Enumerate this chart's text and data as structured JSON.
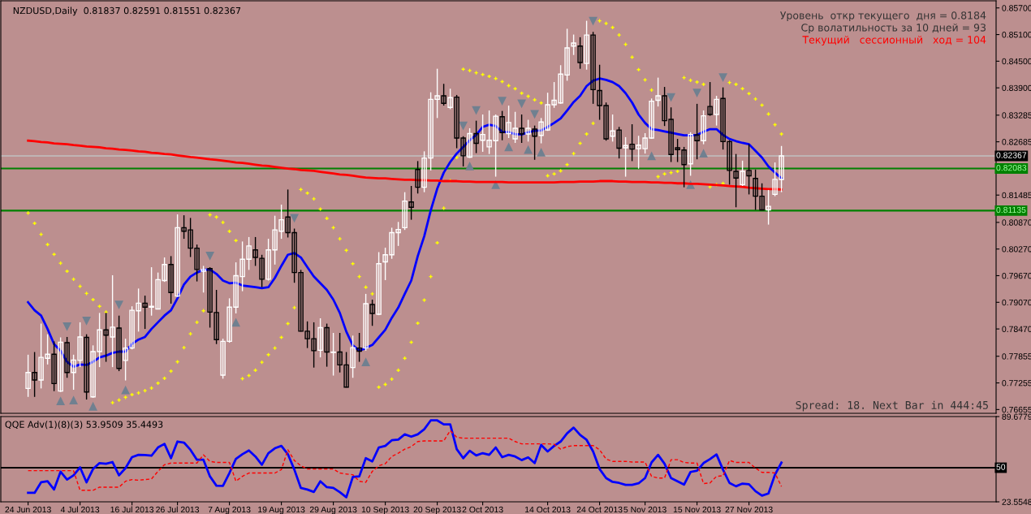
{
  "chart_data": [
    {
      "type": "candlestick",
      "title": "NZDUSD,Daily  0.81837 0.82591 0.81551 0.82367",
      "annotations": [
        "Уровень  откр текущего  дня = 0.8184",
        "Ср волатильность за 10 дней = 93",
        "Текущий   сессионный   ход = 104",
        "Spread: 18. Next Bar in 444:45"
      ],
      "categories": [
        null,
        null,
        null,
        null,
        null,
        null,
        null,
        null,
        null,
        null,
        null,
        null,
        null,
        null,
        null,
        null,
        null,
        null,
        null,
        null,
        null,
        null,
        null,
        null,
        null,
        null,
        null,
        null,
        null,
        null,
        null,
        null,
        null,
        null,
        null,
        null,
        null,
        null,
        null,
        null,
        null,
        null,
        null,
        null,
        null,
        null,
        null,
        null,
        null,
        null,
        null,
        null,
        null,
        null,
        null,
        null,
        null,
        null,
        null,
        null,
        null,
        null,
        null,
        null,
        null,
        null,
        null,
        null,
        null,
        null,
        null,
        null,
        null,
        null,
        null,
        null,
        null,
        null,
        null,
        null,
        null,
        null,
        null,
        null,
        null,
        null,
        null,
        null,
        null,
        null,
        null,
        null,
        null,
        null,
        null,
        null,
        null,
        null,
        null,
        null,
        null,
        null,
        null,
        null,
        null,
        null,
        null,
        null,
        null,
        null,
        null,
        null,
        null,
        null,
        null,
        null,
        null
      ],
      "ohlc": [
        [
          0.7713,
          0.7789,
          0.7694,
          0.7749
        ],
        [
          0.7749,
          0.7795,
          0.7694,
          0.7732
        ],
        [
          0.7732,
          0.7859,
          0.7713,
          0.7783
        ],
        [
          0.7781,
          0.7835,
          0.7767,
          0.779
        ],
        [
          0.779,
          0.7819,
          0.7707,
          0.7724
        ],
        [
          0.7707,
          0.7828,
          0.7705,
          0.7817
        ],
        [
          0.7816,
          0.7829,
          0.7737,
          0.7749
        ],
        [
          0.7749,
          0.7789,
          0.771,
          0.7777
        ],
        [
          0.7776,
          0.7862,
          0.7761,
          0.7829
        ],
        [
          0.7828,
          0.7835,
          0.7688,
          0.7705
        ],
        [
          0.7694,
          0.781,
          0.7692,
          0.7796
        ],
        [
          0.7796,
          0.7883,
          0.7761,
          0.7845
        ],
        [
          0.7845,
          0.7883,
          0.7773,
          0.7833
        ],
        [
          0.7829,
          0.7968,
          0.7761,
          0.7851
        ],
        [
          0.7849,
          0.7877,
          0.7752,
          0.7758
        ],
        [
          0.7776,
          0.7825,
          0.7731,
          0.7804
        ],
        [
          0.7804,
          0.7898,
          0.7801,
          0.7889
        ],
        [
          0.7888,
          0.7938,
          0.7841,
          0.7905
        ],
        [
          0.7905,
          0.7922,
          0.7847,
          0.7896
        ],
        [
          0.7896,
          0.7986,
          0.7877,
          0.7898
        ],
        [
          0.7892,
          0.7974,
          0.7891,
          0.7958
        ],
        [
          0.7956,
          0.8008,
          0.7953,
          0.7992
        ],
        [
          0.7992,
          0.8011,
          0.7904,
          0.7929
        ],
        [
          0.7921,
          0.8105,
          0.7919,
          0.8075
        ],
        [
          0.8075,
          0.8103,
          0.805,
          0.8067
        ],
        [
          0.807,
          0.8097,
          0.8009,
          0.8029
        ],
        [
          0.8029,
          0.8037,
          0.7954,
          0.7981
        ],
        [
          0.7977,
          0.7989,
          0.7929,
          0.7981
        ],
        [
          0.7983,
          0.7986,
          0.785,
          0.7885
        ],
        [
          0.7884,
          0.7935,
          0.7813,
          0.7823
        ],
        [
          0.7743,
          0.7825,
          0.7735,
          0.7819
        ],
        [
          0.7819,
          0.7916,
          0.7816,
          0.7896
        ],
        [
          0.7896,
          0.7997,
          0.7882,
          0.7967
        ],
        [
          0.7965,
          0.8044,
          0.7932,
          0.8004
        ],
        [
          0.8004,
          0.8054,
          0.798,
          0.8034
        ],
        [
          0.8025,
          0.8054,
          0.7989,
          0.8008
        ],
        [
          0.8006,
          0.8014,
          0.7941,
          0.7959
        ],
        [
          0.7959,
          0.805,
          0.7956,
          0.8025
        ],
        [
          0.8025,
          0.8102,
          0.7992,
          0.807
        ],
        [
          0.8067,
          0.8127,
          0.805,
          0.8093
        ],
        [
          0.8099,
          0.8161,
          0.8053,
          0.8064
        ],
        [
          0.8064,
          0.8073,
          0.7951,
          0.7974
        ],
        [
          0.7974,
          0.798,
          0.7841,
          0.7842
        ],
        [
          0.7842,
          0.7864,
          0.7804,
          0.7825
        ],
        [
          0.7825,
          0.7862,
          0.776,
          0.7798
        ],
        [
          0.7799,
          0.7871,
          0.7783,
          0.785
        ],
        [
          0.785,
          0.7859,
          0.7762,
          0.7795
        ],
        [
          0.7794,
          0.7838,
          0.7742,
          0.7795
        ],
        [
          0.7795,
          0.7838,
          0.7749,
          0.7766
        ],
        [
          0.7766,
          0.7795,
          0.7715,
          0.7716
        ],
        [
          0.776,
          0.7832,
          0.7737,
          0.7805
        ],
        [
          0.7804,
          0.7838,
          0.7773,
          0.7797
        ],
        [
          0.7804,
          0.7926,
          0.7798,
          0.7904
        ],
        [
          0.7902,
          0.7913,
          0.7854,
          0.7882
        ],
        [
          0.788,
          0.802,
          0.7878,
          0.7994
        ],
        [
          0.7998,
          0.803,
          0.7957,
          0.8014
        ],
        [
          0.8014,
          0.8075,
          0.8005,
          0.8064
        ],
        [
          0.8064,
          0.8088,
          0.8034,
          0.8071
        ],
        [
          0.8075,
          0.8155,
          0.807,
          0.8135
        ],
        [
          0.8133,
          0.8169,
          0.8093,
          0.8121
        ],
        [
          0.8206,
          0.8225,
          0.8152,
          0.8166
        ],
        [
          0.8166,
          0.8247,
          0.8155,
          0.8232
        ],
        [
          0.8232,
          0.838,
          0.8204,
          0.8364
        ],
        [
          0.8364,
          0.8433,
          0.8322,
          0.8372
        ],
        [
          0.8372,
          0.8399,
          0.835,
          0.8355
        ],
        [
          0.8346,
          0.8388,
          0.8342,
          0.8368
        ],
        [
          0.8369,
          0.8374,
          0.8254,
          0.8277
        ],
        [
          0.8277,
          0.8281,
          0.8213,
          0.8237
        ],
        [
          0.8234,
          0.8299,
          0.8232,
          0.8287
        ],
        [
          0.8287,
          0.8316,
          0.8243,
          0.8265
        ],
        [
          0.8272,
          0.833,
          0.8246,
          0.8285
        ],
        [
          0.8257,
          0.8339,
          0.8241,
          0.8272
        ],
        [
          0.8271,
          0.833,
          0.819,
          0.8326
        ],
        [
          0.8325,
          0.8338,
          0.8272,
          0.8289
        ],
        [
          0.8287,
          0.835,
          0.8277,
          0.8312
        ],
        [
          0.8275,
          0.8336,
          0.8266,
          0.8299
        ],
        [
          0.8299,
          0.833,
          0.8266,
          0.8286
        ],
        [
          0.8286,
          0.8318,
          0.8269,
          0.8299
        ],
        [
          0.8297,
          0.8305,
          0.8228,
          0.8281
        ],
        [
          0.8283,
          0.8322,
          0.8265,
          0.8313
        ],
        [
          0.8295,
          0.8379,
          0.8293,
          0.8352
        ],
        [
          0.8352,
          0.8403,
          0.8345,
          0.8362
        ],
        [
          0.8356,
          0.8441,
          0.8354,
          0.8421
        ],
        [
          0.8419,
          0.8523,
          0.8406,
          0.848
        ],
        [
          0.8484,
          0.851,
          0.8464,
          0.8491
        ],
        [
          0.8484,
          0.8504,
          0.8433,
          0.8447
        ],
        [
          0.8445,
          0.8541,
          0.8431,
          0.8509
        ],
        [
          0.8509,
          0.8516,
          0.8354,
          0.8386
        ],
        [
          0.8384,
          0.8442,
          0.8318,
          0.835
        ],
        [
          0.835,
          0.8357,
          0.8271,
          0.8275
        ],
        [
          0.8281,
          0.833,
          0.8269,
          0.8293
        ],
        [
          0.8295,
          0.8302,
          0.8231,
          0.8254
        ],
        [
          0.8255,
          0.8279,
          0.819,
          0.826
        ],
        [
          0.8263,
          0.8308,
          0.8225,
          0.8252
        ],
        [
          0.8253,
          0.8282,
          0.8208,
          0.8261
        ],
        [
          0.8253,
          0.8288,
          0.8242,
          0.8277
        ],
        [
          0.8277,
          0.8366,
          0.8275,
          0.836
        ],
        [
          0.8362,
          0.8413,
          0.8348,
          0.8372
        ],
        [
          0.8372,
          0.8392,
          0.8304,
          0.8316
        ],
        [
          0.8319,
          0.8346,
          0.8223,
          0.824
        ],
        [
          0.8255,
          0.8275,
          0.8223,
          0.8251
        ],
        [
          0.825,
          0.8257,
          0.8166,
          0.8217
        ],
        [
          0.8219,
          0.829,
          0.8192,
          0.8285
        ],
        [
          0.8284,
          0.8354,
          0.8229,
          0.8271
        ],
        [
          0.8271,
          0.8339,
          0.8263,
          0.8327
        ],
        [
          0.8348,
          0.8403,
          0.8327,
          0.833
        ],
        [
          0.833,
          0.8372,
          0.8305,
          0.8364
        ],
        [
          0.8366,
          0.8391,
          0.8251,
          0.8269
        ],
        [
          0.8269,
          0.8272,
          0.8172,
          0.8204
        ],
        [
          0.8202,
          0.8241,
          0.8121,
          0.8187
        ],
        [
          0.8172,
          0.8226,
          0.8169,
          0.8202
        ],
        [
          0.8204,
          0.8263,
          0.815,
          0.8192
        ],
        [
          0.8186,
          0.8206,
          0.8115,
          0.8146
        ],
        [
          0.8146,
          0.8175,
          0.8114,
          0.8115
        ],
        [
          0.8115,
          0.816,
          0.8082,
          0.8123
        ],
        [
          0.815,
          0.8222,
          0.8146,
          0.8184
        ],
        [
          0.81837,
          0.82591,
          0.81551,
          0.82367
        ]
      ],
      "colors": [
        "#ffffff",
        "#000000",
        "#ffffff",
        "#ffffff",
        "#000000",
        "#ffffff",
        "#000000",
        "#ffffff",
        "#ffffff",
        "#000000",
        "#ffffff",
        "#ffffff",
        "#000000",
        "#ffffff",
        "#000000",
        "#ffffff",
        "#ffffff",
        "#ffffff",
        "#000000",
        "#ffffff",
        "#ffffff",
        "#ffffff",
        "#000000",
        "#ffffff",
        "#000000",
        "#000000",
        "#000000",
        "#ffffff",
        "#000000",
        "#000000",
        "#ffffff",
        "#ffffff",
        "#ffffff",
        "#ffffff",
        "#ffffff",
        "#000000",
        "#000000",
        "#ffffff",
        "#ffffff",
        "#ffffff",
        "#000000",
        "#000000",
        "#000000",
        "#000000",
        "#000000",
        "#ffffff",
        "#000000",
        "#ffffff",
        "#000000",
        "#000000",
        "#ffffff",
        "#000000",
        "#ffffff",
        "#000000",
        "#ffffff",
        "#ffffff",
        "#ffffff",
        "#ffffff",
        "#ffffff",
        "#000000",
        "#000000",
        "#ffffff",
        "#ffffff",
        "#ffffff",
        "#000000",
        "#ffffff",
        "#000000",
        "#000000",
        "#ffffff",
        "#000000",
        "#ffffff",
        "#ffffff",
        "#ffffff",
        "#000000",
        "#ffffff",
        "#ffffff",
        "#000000",
        "#ffffff",
        "#000000",
        "#ffffff",
        "#ffffff",
        "#ffffff",
        "#ffffff",
        "#ffffff",
        "#ffffff",
        "#000000",
        "#ffffff",
        "#000000",
        "#000000",
        "#000000",
        "#ffffff",
        "#000000",
        "#ffffff",
        "#000000",
        "#ffffff",
        "#ffffff",
        "#ffffff",
        "#ffffff",
        "#000000",
        "#000000",
        "#000000",
        "#000000",
        "#ffffff",
        "#000000",
        "#ffffff",
        "#000000",
        "#ffffff",
        "#000000",
        "#000000",
        "#000000",
        "#ffffff",
        "#000000",
        "#000000",
        "#000000",
        "#ffffff",
        "#ffffff",
        "#ffffff"
      ],
      "series": [
        {
          "type": "line",
          "color": "#0000ff",
          "values": [
            0.7907,
            0.7889,
            0.7877,
            0.7847,
            0.7813,
            0.7798,
            0.7773,
            0.7762,
            0.7767,
            0.7766,
            0.7773,
            0.7783,
            0.7787,
            0.7793,
            0.7796,
            0.7796,
            0.7813,
            0.7823,
            0.7829,
            0.7847,
            0.7862,
            0.7877,
            0.7889,
            0.7916,
            0.7947,
            0.7965,
            0.7974,
            0.798,
            0.7981,
            0.7971,
            0.7956,
            0.795,
            0.7951,
            0.7945,
            0.7943,
            0.7941,
            0.7939,
            0.7941,
            0.7962,
            0.7989,
            0.8014,
            0.8018,
            0.8008,
            0.7986,
            0.7965,
            0.795,
            0.7935,
            0.7913,
            0.7883,
            0.7841,
            0.781,
            0.7798,
            0.7804,
            0.7811,
            0.7828,
            0.7845,
            0.7872,
            0.7895,
            0.7926,
            0.7956,
            0.8011,
            0.8056,
            0.8114,
            0.8163,
            0.8199,
            0.8223,
            0.8242,
            0.8257,
            0.8272,
            0.8284,
            0.8302,
            0.8307,
            0.8304,
            0.8291,
            0.829,
            0.8286,
            0.8285,
            0.829,
            0.8293,
            0.8294,
            0.8302,
            0.8311,
            0.8321,
            0.8339,
            0.8358,
            0.8372,
            0.8394,
            0.8406,
            0.8411,
            0.8408,
            0.8403,
            0.8394,
            0.8378,
            0.8357,
            0.833,
            0.8311,
            0.8297,
            0.8295,
            0.8292,
            0.8289,
            0.8286,
            0.8283,
            0.8283,
            0.8284,
            0.8291,
            0.8297,
            0.8297,
            0.8284,
            0.8275,
            0.827,
            0.8266,
            0.8263,
            0.8248,
            0.8233,
            0.8213,
            0.8199,
            0.8186
          ]
        },
        {
          "type": "line",
          "color": "#ff0000",
          "values": [
            0.8271,
            0.827,
            0.8268,
            0.8267,
            0.8265,
            0.8264,
            0.8263,
            0.8261,
            0.826,
            0.8258,
            0.8257,
            0.8256,
            0.8254,
            0.8253,
            0.8251,
            0.825,
            0.8249,
            0.8247,
            0.8246,
            0.8244,
            0.8243,
            0.8241,
            0.824,
            0.8238,
            0.8236,
            0.8234,
            0.8233,
            0.8231,
            0.8229,
            0.8228,
            0.8226,
            0.8224,
            0.8222,
            0.8221,
            0.8219,
            0.8217,
            0.8215,
            0.8214,
            0.8212,
            0.821,
            0.8208,
            0.8207,
            0.8205,
            0.8204,
            0.8203,
            0.8201,
            0.8199,
            0.8197,
            0.8195,
            0.8194,
            0.8192,
            0.819,
            0.8188,
            0.8187,
            0.8186,
            0.8186,
            0.8185,
            0.8184,
            0.8183,
            0.8183,
            0.8182,
            0.8182,
            0.8181,
            0.8181,
            0.818,
            0.818,
            0.818,
            0.8179,
            0.8179,
            0.8178,
            0.8178,
            0.8178,
            0.8178,
            0.8178,
            0.8177,
            0.8177,
            0.8177,
            0.8177,
            0.8177,
            0.8177,
            0.8177,
            0.8177,
            0.8178,
            0.8178,
            0.8178,
            0.8179,
            0.8179,
            0.8179,
            0.818,
            0.818,
            0.818,
            0.8179,
            0.8179,
            0.8178,
            0.8178,
            0.8178,
            0.8177,
            0.8177,
            0.8176,
            0.8176,
            0.8175,
            0.8175,
            0.8174,
            0.8174,
            0.8173,
            0.8172,
            0.8171,
            0.817,
            0.8169,
            0.8168,
            0.8167,
            0.8165,
            0.8164,
            0.8163,
            0.8162,
            0.8162,
            0.8161
          ]
        },
        {
          "type": "scatter",
          "color": "#ffff00",
          "marker": "cross",
          "values": [
            0.8108,
            0.8085,
            0.806,
            0.8037,
            0.8015,
            0.7995,
            0.7977,
            0.7959,
            0.7943,
            0.7927,
            0.7913,
            0.7898,
            0.7885,
            0.7681,
            0.7687,
            0.7693,
            0.7699,
            0.7703,
            0.7708,
            0.7714,
            0.7725,
            0.7736,
            0.7752,
            0.7773,
            0.7805,
            0.7836,
            0.7862,
            0.7888,
            0.8104,
            0.8099,
            0.8087,
            0.8067,
            0.8046,
            0.7735,
            0.7742,
            0.7754,
            0.7772,
            0.7789,
            0.7804,
            0.7828,
            0.7859,
            0.7895,
            0.8161,
            0.8153,
            0.814,
            0.8117,
            0.8096,
            0.8075,
            0.805,
            0.8024,
            0.7994,
            0.7965,
            0.7941,
            0.7926,
            0.7716,
            0.7722,
            0.7734,
            0.7754,
            0.7781,
            0.7817,
            0.786,
            0.7912,
            0.7965,
            0.8041,
            0.8119,
            0.8181,
            0.8233,
            0.8432,
            0.8429,
            0.8424,
            0.842,
            0.8416,
            0.8411,
            0.8404,
            0.8395,
            0.8388,
            0.8378,
            0.8371,
            0.8363,
            0.8356,
            0.8192,
            0.8196,
            0.8203,
            0.8217,
            0.8242,
            0.8265,
            0.8286,
            0.831,
            0.8541,
            0.8535,
            0.8526,
            0.8509,
            0.8488,
            0.8459,
            0.8431,
            0.8408,
            0.8385,
            0.819,
            0.8196,
            0.8199,
            0.8202,
            0.8413,
            0.8407,
            0.8403,
            0.8398,
            0.8167,
            0.8172,
            0.8175,
            0.8402,
            0.8398,
            0.8388,
            0.8377,
            0.8365,
            0.8351,
            0.8331,
            0.8307,
            0.8286
          ]
        },
        {
          "type": "scatter",
          "color": "#708090",
          "marker": "triangle",
          "values": [
            null,
            null,
            null,
            null,
            null,
            null,
            0.7852,
            null,
            null,
            0.7865,
            null,
            null,
            null,
            null,
            0.7901,
            null,
            null,
            null,
            null,
            null,
            null,
            null,
            null,
            null,
            null,
            null,
            null,
            null,
            0.8011,
            null,
            null,
            null,
            null,
            null,
            null,
            null,
            null,
            null,
            null,
            null,
            null,
            0.8096,
            null,
            null,
            null,
            null,
            null,
            null,
            null,
            null,
            null,
            null,
            null,
            null,
            null,
            null,
            null,
            null,
            null,
            null,
            null,
            null,
            null,
            null,
            null,
            null,
            null,
            0.8304,
            null,
            0.8339,
            null,
            null,
            null,
            0.836,
            null,
            null,
            0.8354,
            null,
            0.833,
            null,
            null,
            null,
            null,
            null,
            null,
            null,
            null,
            0.854,
            null,
            null,
            null,
            null,
            null,
            null,
            null,
            null,
            null,
            null,
            null,
            0.8368,
            null,
            null,
            null,
            0.8378,
            null,
            null,
            null,
            0.8413,
            null,
            null,
            null,
            null,
            null,
            null,
            null,
            null,
            null
          ]
        },
        {
          "type": "scatter",
          "color": "#708090",
          "marker": "triangle",
          "values": [
            null,
            null,
            null,
            null,
            null,
            0.7685,
            null,
            0.7687,
            null,
            null,
            0.7673,
            null,
            null,
            null,
            null,
            0.771,
            null,
            null,
            null,
            null,
            null,
            null,
            null,
            null,
            null,
            null,
            null,
            null,
            null,
            null,
            null,
            null,
            0.7862,
            null,
            null,
            null,
            null,
            null,
            null,
            null,
            null,
            null,
            null,
            null,
            null,
            null,
            null,
            null,
            null,
            null,
            null,
            null,
            0.7773,
            null,
            null,
            null,
            null,
            null,
            null,
            null,
            null,
            null,
            null,
            null,
            null,
            null,
            null,
            null,
            0.8214,
            null,
            null,
            null,
            0.8172,
            null,
            0.8257,
            null,
            null,
            0.8251,
            null,
            0.8245,
            null,
            null,
            null,
            null,
            null,
            null,
            null,
            null,
            null,
            null,
            null,
            null,
            null,
            null,
            null,
            null,
            0.8237,
            null,
            null,
            null,
            null,
            null,
            0.8172,
            null,
            0.8243,
            null,
            null,
            null,
            null,
            null,
            null,
            null,
            null,
            null,
            null,
            null,
            null
          ]
        }
      ],
      "ylim": [
        0.7657,
        0.8586
      ],
      "yticks": [
        {
          "value": 0.857,
          "label": "0.85700"
        },
        {
          "value": 0.851,
          "label": "0.85100"
        },
        {
          "value": 0.845,
          "label": "0.84500"
        },
        {
          "value": 0.839,
          "label": "0.83900"
        },
        {
          "value": 0.83285,
          "label": "0.83285"
        },
        {
          "value": 0.82685,
          "label": "0.82685"
        },
        {
          "value": 0.81485,
          "label": "0.81485"
        },
        {
          "value": 0.8087,
          "label": "0.80870"
        },
        {
          "value": 0.8027,
          "label": "0.80270"
        },
        {
          "value": 0.7967,
          "label": "0.79670"
        },
        {
          "value": 0.7907,
          "label": "0.79070"
        },
        {
          "value": 0.7847,
          "label": "0.78470"
        },
        {
          "value": 0.77855,
          "label": "0.77855"
        },
        {
          "value": 0.77255,
          "label": "0.77255"
        },
        {
          "value": 0.76655,
          "label": "0.76655"
        }
      ],
      "ref_lines": [
        {
          "axis": "y",
          "value": 0.82367,
          "label": "0.82367",
          "color": "#c0c0c0"
        },
        {
          "axis": "y",
          "value": 0.82083,
          "label": "0.82083",
          "color": "#008000"
        },
        {
          "axis": "y",
          "value": 0.81135,
          "label": "0.81135",
          "color": "#008000"
        }
      ]
    },
    {
      "type": "line",
      "title": "QQE Adv(1)(8)(3) 53.9509 35.4493",
      "categories": [
        "24 Jun 2013",
        null,
        null,
        null,
        null,
        null,
        null,
        null,
        "4 Jul 2013",
        null,
        null,
        null,
        null,
        null,
        null,
        null,
        "16 Jul 2013",
        null,
        null,
        null,
        null,
        null,
        null,
        "26 Jul 2013",
        null,
        null,
        null,
        null,
        null,
        null,
        null,
        "7 Aug 2013",
        null,
        null,
        null,
        null,
        null,
        null,
        null,
        "19 Aug 2013",
        null,
        null,
        null,
        null,
        null,
        null,
        null,
        "29 Aug 2013",
        null,
        null,
        null,
        null,
        null,
        null,
        null,
        "10 Sep 2013",
        null,
        null,
        null,
        null,
        null,
        null,
        null,
        "20 Sep 2013",
        null,
        null,
        null,
        null,
        null,
        null,
        "2 Oct 2013",
        null,
        null,
        null,
        null,
        null,
        null,
        null,
        null,
        null,
        "14 Oct 2013",
        null,
        null,
        null,
        null,
        null,
        null,
        null,
        "24 Oct 2013",
        null,
        null,
        null,
        null,
        null,
        null,
        "5 Nov 2013",
        null,
        null,
        null,
        null,
        null,
        null,
        null,
        "15 Nov 2013",
        null,
        null,
        null,
        null,
        null,
        null,
        null,
        "27 Nov 2013",
        null,
        null,
        null,
        null,
        null
      ],
      "series": [
        {
          "color": "#0000ff",
          "line_style": "solid",
          "values": [
            30.5,
            30.5,
            38.7,
            39.5,
            33.1,
            46.9,
            40.8,
            44.1,
            50.3,
            38.7,
            49.0,
            53.6,
            53.1,
            54.4,
            44.1,
            49.7,
            58.2,
            60.0,
            59.8,
            59.3,
            65.7,
            68.5,
            57.4,
            70.3,
            69.5,
            63.9,
            56.2,
            56.2,
            43.3,
            36.1,
            35.9,
            45.9,
            56.9,
            60.5,
            63.4,
            58.7,
            52.3,
            61.3,
            65.1,
            66.9,
            60.5,
            48.5,
            34.3,
            33.1,
            31.2,
            39.5,
            34.9,
            34.3,
            31.0,
            27.1,
            42.8,
            43.3,
            57.4,
            54.9,
            65.7,
            66.9,
            71.3,
            71.8,
            75.9,
            74.1,
            75.9,
            79.8,
            86.7,
            86.7,
            83.6,
            83.6,
            64.4,
            57.4,
            63.1,
            59.5,
            61.3,
            60.0,
            65.7,
            58.2,
            60.0,
            58.7,
            55.9,
            58.0,
            53.6,
            67.7,
            62.6,
            66.9,
            70.3,
            76.7,
            81.1,
            75.4,
            71.6,
            62.6,
            49.0,
            42.0,
            39.0,
            38.2,
            36.7,
            36.7,
            37.9,
            42.0,
            54.1,
            60.0,
            53.1,
            42.0,
            39.5,
            36.9,
            46.7,
            47.7,
            53.6,
            56.7,
            60.3,
            48.5,
            38.2,
            35.6,
            37.7,
            37.2,
            31.8,
            28.4,
            30.0,
            44.6,
            53.9509
          ]
        },
        {
          "color": "#ff0000",
          "line_style": "dashed",
          "values": [
            47.7,
            47.7,
            47.7,
            47.7,
            47.7,
            47.7,
            47.7,
            47.7,
            32.5,
            32.5,
            32.5,
            34.9,
            34.9,
            34.9,
            34.9,
            39.5,
            40.8,
            40.3,
            40.8,
            41.3,
            47.2,
            52.3,
            53.6,
            53.6,
            53.6,
            53.6,
            53.6,
            60.0,
            54.9,
            54.1,
            54.1,
            54.1,
            39.5,
            43.3,
            45.9,
            45.9,
            45.9,
            45.9,
            45.9,
            48.5,
            63.9,
            55.6,
            51.5,
            49.0,
            49.0,
            49.0,
            49.0,
            49.0,
            45.9,
            45.1,
            44.6,
            39.5,
            38.7,
            47.2,
            51.5,
            53.1,
            58.7,
            61.3,
            64.4,
            66.4,
            70.3,
            70.8,
            70.8,
            70.8,
            70.8,
            78.8,
            73.6,
            72.9,
            72.9,
            72.9,
            72.9,
            72.9,
            72.9,
            72.9,
            72.9,
            70.3,
            68.5,
            68.5,
            68.5,
            68.5,
            68.5,
            68.2,
            64.4,
            66.4,
            67.2,
            67.2,
            67.2,
            67.2,
            63.9,
            56.7,
            54.9,
            54.9,
            54.9,
            54.4,
            54.4,
            54.4,
            43.3,
            42.0,
            42.0,
            56.2,
            56.2,
            54.1,
            53.6,
            53.6,
            37.7,
            38.2,
            43.3,
            43.8,
            55.6,
            54.1,
            54.1,
            54.1,
            49.7,
            46.4,
            46.4,
            45.9,
            35.4493
          ]
        }
      ],
      "ylim": [
        23.5548,
        89.6779
      ],
      "yticks": [
        89.6779,
        23.5548
      ],
      "ref_lines": [
        {
          "axis": "y",
          "value": 50,
          "label": "50",
          "color": "#000000"
        }
      ]
    }
  ]
}
